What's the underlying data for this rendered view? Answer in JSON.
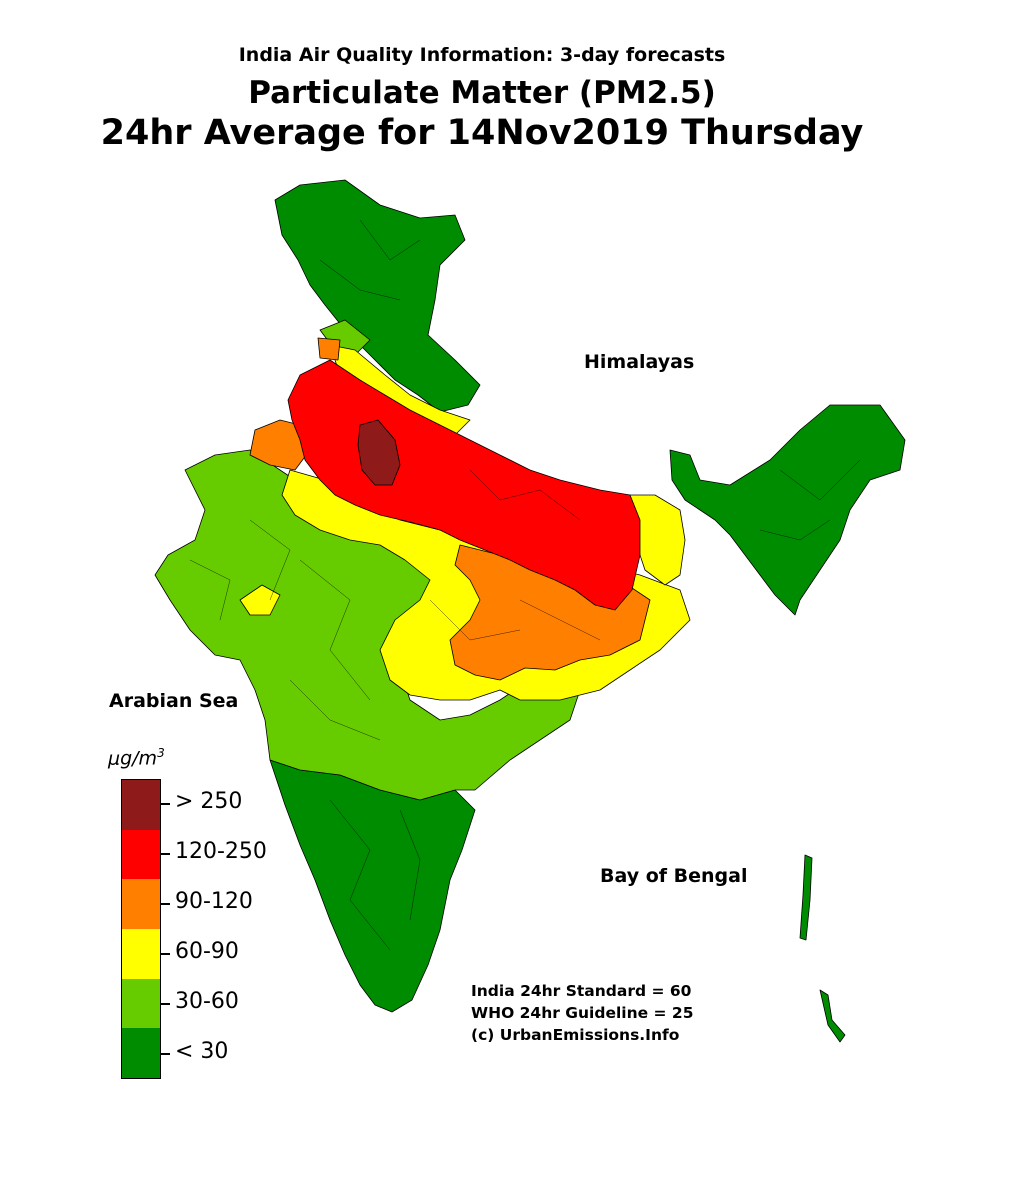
{
  "title": {
    "subtitle": "India Air Quality Information: 3-day forecasts",
    "main": "Particulate Matter (PM2.5)",
    "date": "24hr Average for 14Nov2019 Thursday"
  },
  "labels": {
    "himalayas": "Himalayas",
    "arabian_sea": "Arabian Sea",
    "bay_of_bengal": "Bay of Bengal"
  },
  "legend": {
    "unit_base": "μg/m",
    "unit_exp": "3",
    "classes": [
      {
        "label": "> 250",
        "color": "#8e1a1a"
      },
      {
        "label": "120-250",
        "color": "#ff0000"
      },
      {
        "label": "90-120",
        "color": "#ff7f00"
      },
      {
        "label": "60-90",
        "color": "#ffff00"
      },
      {
        "label": "30-60",
        "color": "#66cc00"
      },
      {
        "label": "< 30",
        "color": "#008c00"
      }
    ]
  },
  "notes": {
    "line1": "India 24hr Standard = 60",
    "line2": "WHO 24hr Guideline = 25",
    "line3": "(c) UrbanEmissions.Info"
  },
  "colors": {
    "very_high": "#8e1a1a",
    "high": "#ff0000",
    "moderate_high": "#ff7f00",
    "moderate": "#ffff00",
    "low": "#66cc00",
    "very_low": "#008c00",
    "border": "#000000"
  }
}
